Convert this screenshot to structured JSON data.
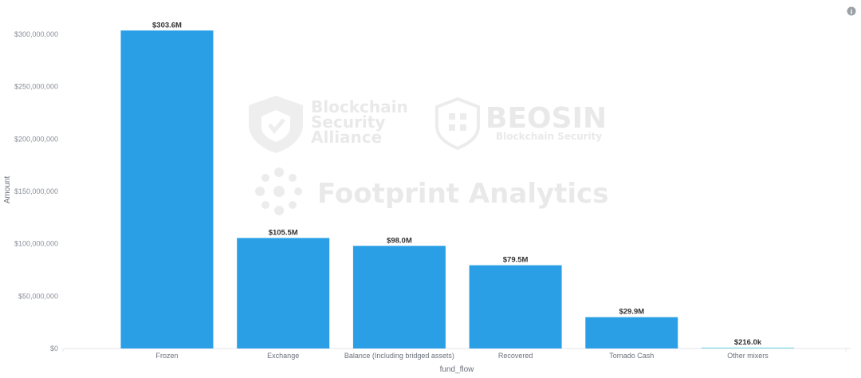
{
  "chart_data": {
    "type": "bar",
    "categories": [
      "Frozen",
      "Exchange",
      "Balance (Including bridged assets)",
      "Recovered",
      "Tornado Cash",
      "Other mixers"
    ],
    "values": [
      303600000,
      105500000,
      98000000,
      79500000,
      29900000,
      216000
    ],
    "data_labels": [
      "$303.6M",
      "$105.5M",
      "$98.0M",
      "$79.5M",
      "$29.9M",
      "$216.0k"
    ],
    "xlabel": "fund_flow",
    "ylabel": "Amount",
    "ylim": [
      0,
      300000000
    ],
    "yticks": [
      0,
      50000000,
      100000000,
      150000000,
      200000000,
      250000000,
      300000000
    ],
    "ytick_labels": [
      "$0",
      "$50,000,000",
      "$100,000,000",
      "$150,000,000",
      "$200,000,000",
      "$250,000,000",
      "$300,000,000"
    ],
    "grid": false,
    "bar_color": "#2a9fe6",
    "last_bar_color": "#7fd6e8"
  },
  "watermarks": {
    "bsa_line1": "Blockchain",
    "bsa_line2": "Security",
    "bsa_line3": "Alliance",
    "beosin_name": "BEOSIN",
    "beosin_sub": "Blockchain Security",
    "footprint": "Footprint Analytics"
  },
  "icons": {
    "info": "info-icon"
  },
  "info_symbol": "i"
}
